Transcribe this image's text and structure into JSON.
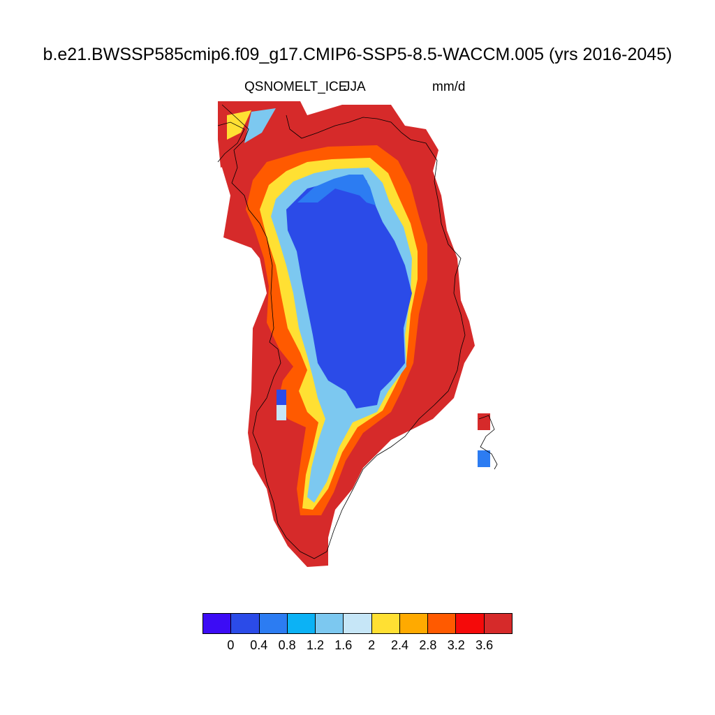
{
  "title": "b.e21.BWSSP585cmip6.f09_g17.CMIP6-SSP5-8.5-WACCM.005 (yrs 2016-2045)",
  "variable": "QSNOMELT_ICE",
  "season": "JJA",
  "units": "mm/d",
  "colorbar": {
    "colors": [
      "#3c0cf5",
      "#2b4be8",
      "#2c7cf2",
      "#0cb2f5",
      "#7cc8f0",
      "#c6e6f7",
      "#ffe033",
      "#ffaa00",
      "#ff5a00",
      "#f50a0a",
      "#d62a2a"
    ],
    "tick_labels": [
      "0",
      "0.4",
      "0.8",
      "1.2",
      "1.6",
      "2",
      "2.4",
      "2.8",
      "3.2",
      "3.6"
    ]
  },
  "map_data": {
    "region": "Greenland",
    "field": "QSNOMELT_ICE",
    "interior_level_mm_d": "0-0.4",
    "margin_level_mm_d": ">3.6"
  }
}
